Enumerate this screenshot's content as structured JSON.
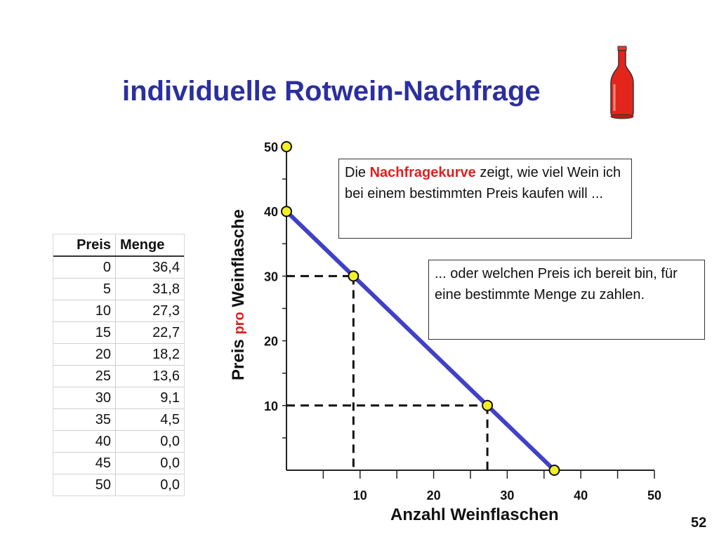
{
  "title": "individuelle Rotwein-Nachfrage",
  "table": {
    "headers": [
      "Preis",
      "Menge"
    ],
    "rows": [
      [
        "0",
        "36,4"
      ],
      [
        "5",
        "31,8"
      ],
      [
        "10",
        "27,3"
      ],
      [
        "15",
        "22,7"
      ],
      [
        "20",
        "18,2"
      ],
      [
        "25",
        "13,6"
      ],
      [
        "30",
        "9,1"
      ],
      [
        "35",
        "4,5"
      ],
      [
        "40",
        "0,0"
      ],
      [
        "45",
        "0,0"
      ],
      [
        "50",
        "0,0"
      ]
    ]
  },
  "callouts": {
    "first": {
      "before": "Die ",
      "highlight": "Nachfragekurve",
      "after": " zeigt, wie viel Wein ich bei einem bestimmten Preis kaufen will ..."
    },
    "second": {
      "text": "... oder welchen Preis ich bereit bin, für eine bestimmte Menge zu zahlen."
    }
  },
  "axis_labels": {
    "y_part1": "Preis ",
    "y_pro": "pro",
    "y_part2": " Weinflasche",
    "x": "Anzahl Weinflaschen"
  },
  "page_number": "52",
  "colors": {
    "title": "#2b2f9e",
    "curve": "#4040c8",
    "point_fill": "#f2ee2a",
    "highlight": "#e02020"
  },
  "chart_data": {
    "type": "line",
    "x": [
      0,
      9.1,
      27.3,
      36.4
    ],
    "y": [
      40,
      30,
      10,
      0
    ],
    "xlim": [
      0,
      50
    ],
    "ylim": [
      0,
      50
    ],
    "xticks": [
      10,
      20,
      30,
      40,
      50
    ],
    "yticks": [
      10,
      20,
      30,
      40,
      50
    ],
    "xlabel": "Anzahl Weinflaschen",
    "ylabel": "Preis pro Weinflasche",
    "points": [
      {
        "x": 0,
        "y": 50
      },
      {
        "x": 0,
        "y": 40
      },
      {
        "x": 9.1,
        "y": 30
      },
      {
        "x": 27.3,
        "y": 10
      },
      {
        "x": 36.4,
        "y": 0
      }
    ],
    "reference_lines": [
      {
        "x": 9.1,
        "y": 30
      },
      {
        "x": 27.3,
        "y": 10
      }
    ],
    "grid": false
  }
}
